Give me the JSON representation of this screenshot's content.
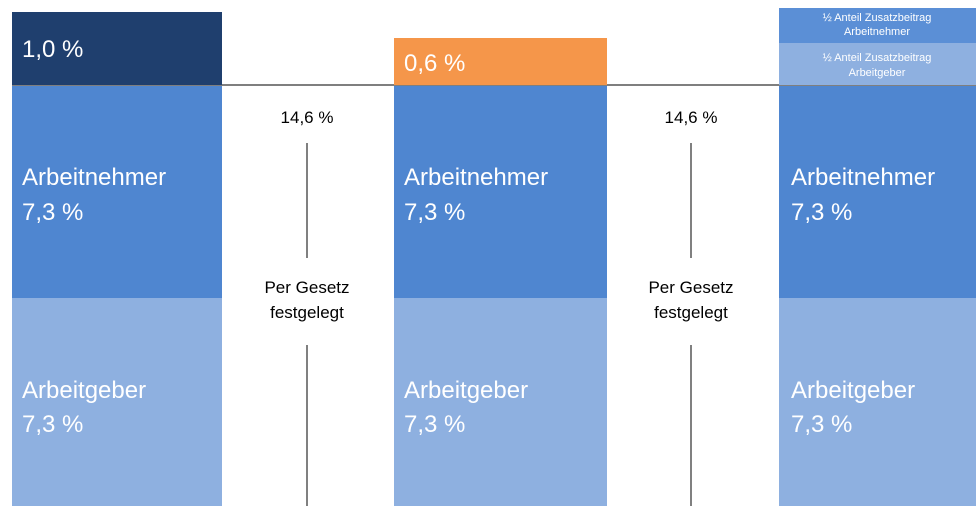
{
  "columns": [
    {
      "top": [
        "1,0 %"
      ],
      "employee": [
        "Arbeitnehmer",
        "7,3 %"
      ],
      "employer": [
        "Arbeitgeber",
        "7,3 %"
      ]
    },
    {
      "top": [
        "0,6 %"
      ],
      "employee": [
        "Arbeitnehmer",
        "7,3 %"
      ],
      "employer": [
        "Arbeitgeber",
        "7,3 %"
      ]
    },
    {
      "top_employee": [
        "½ Anteil Zusatzbeitrag",
        "Arbeitnehmer"
      ],
      "top_employer": [
        "½ Anteil Zusatzbeitrag",
        "Arbeitgeber"
      ],
      "employee": [
        "Arbeitnehmer",
        "7,3 %"
      ],
      "employer": [
        "Arbeitgeber",
        "7,3 %"
      ]
    }
  ],
  "annotations": [
    {
      "total": "14,6 %",
      "note": [
        "Per Gesetz",
        "festgelegt"
      ]
    },
    {
      "total": "14,6 %",
      "note": [
        "Per Gesetz",
        "festgelegt"
      ]
    }
  ]
}
